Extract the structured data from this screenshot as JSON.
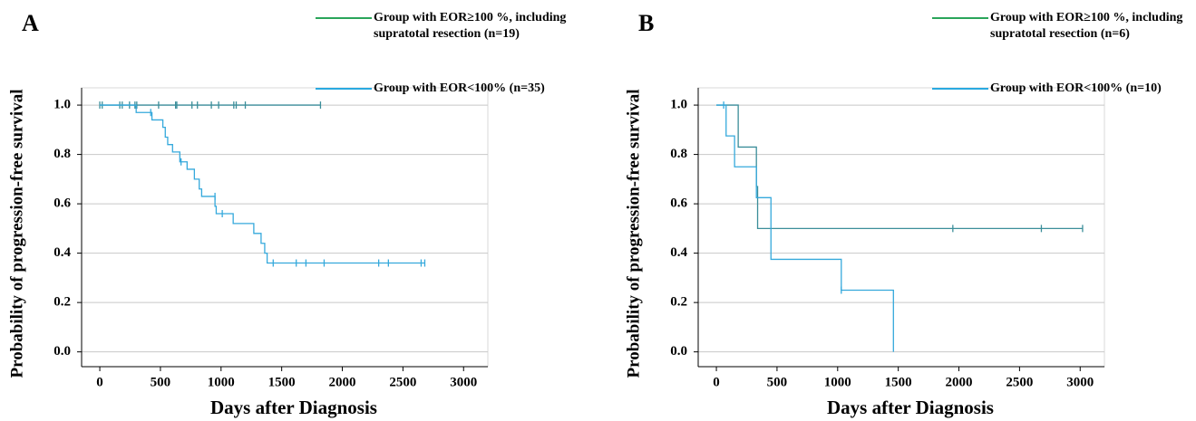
{
  "chart_data": [
    {
      "type": "step",
      "panel_label": "A",
      "xlabel": "Days after Diagnosis",
      "ylabel": "Probability of progression-free survival",
      "xlim": [
        -150,
        3200
      ],
      "xticks": [
        0,
        500,
        1000,
        1500,
        2000,
        2500,
        3000
      ],
      "ylim": [
        -0.06,
        1.07
      ],
      "yticks": [
        {
          "value": 0,
          "label": "0.0"
        },
        0.2,
        0.4,
        0.6,
        0.8,
        {
          "value": 1,
          "label": "1.0"
        }
      ],
      "grid": true,
      "series": [
        {
          "name": "Group with EOR≥100 %, including supratotal resection (n=19)",
          "color": "#3b8e9a",
          "legend_color": "#2aa55a",
          "x": [
            0
          ],
          "values": [
            1
          ],
          "censor_x": [
            0,
            20,
            165,
            185,
            245,
            290,
            305,
            485,
            625,
            635,
            760,
            805,
            920,
            980,
            1105,
            1125,
            1200,
            1820
          ],
          "censor_y": [
            1,
            1,
            1,
            1,
            1,
            1,
            1,
            1,
            1,
            1,
            1,
            1,
            1,
            1,
            1,
            1,
            1,
            1
          ]
        },
        {
          "name": "Group with EOR<100% (n=35)",
          "color": "#35a9dc",
          "legend_color": "#29a9e0",
          "x": [
            0,
            300,
            430,
            520,
            540,
            560,
            600,
            660,
            720,
            780,
            820,
            840,
            950,
            960,
            1100,
            1270,
            1330,
            1360,
            1380
          ],
          "values": [
            1,
            0.97,
            0.94,
            0.91,
            0.87,
            0.84,
            0.81,
            0.77,
            0.74,
            0.7,
            0.66,
            0.63,
            0.59,
            0.56,
            0.52,
            0.48,
            0.44,
            0.4,
            0.36
          ],
          "censor_x": [
            420,
            670,
            950,
            1010,
            1430,
            1620,
            1700,
            1850,
            2300,
            2380,
            2650,
            2680
          ],
          "censor_y": [
            0.97,
            0.77,
            0.63,
            0.56,
            0.36,
            0.36,
            0.36,
            0.36,
            0.36,
            0.36,
            0.36,
            0.36
          ]
        }
      ]
    },
    {
      "type": "step",
      "panel_label": "B",
      "xlabel": "Days after Diagnosis",
      "ylabel": "Probability of progression-free survival",
      "xlim": [
        -150,
        3200
      ],
      "xticks": [
        0,
        500,
        1000,
        1500,
        2000,
        2500,
        3000
      ],
      "ylim": [
        -0.06,
        1.07
      ],
      "yticks": [
        {
          "value": 0,
          "label": "0.0"
        },
        0.2,
        0.4,
        0.6,
        0.8,
        {
          "value": 1,
          "label": "1.0"
        }
      ],
      "grid": true,
      "series": [
        {
          "name": "Group with EOR≥100 %, including supratotal resection (n=6)",
          "color": "#3b8e9a",
          "legend_color": "#2aa55a",
          "x": [
            0,
            180,
            330,
            340
          ],
          "values": [
            1,
            0.83,
            0.67,
            0.5
          ],
          "censor_x": [
            1950,
            2680,
            3020
          ],
          "censor_y": [
            0.5,
            0.5,
            0.5
          ]
        },
        {
          "name": "Group with EOR<100% (n=10)",
          "color": "#35a9dc",
          "legend_color": "#29a9e0",
          "x": [
            0,
            80,
            150,
            330,
            450,
            1030,
            1460
          ],
          "values": [
            1,
            0.875,
            0.75,
            0.625,
            0.375,
            0.25,
            0
          ],
          "censor_x": [
            60,
            1030
          ],
          "censor_y": [
            1,
            0.25
          ]
        }
      ]
    }
  ]
}
